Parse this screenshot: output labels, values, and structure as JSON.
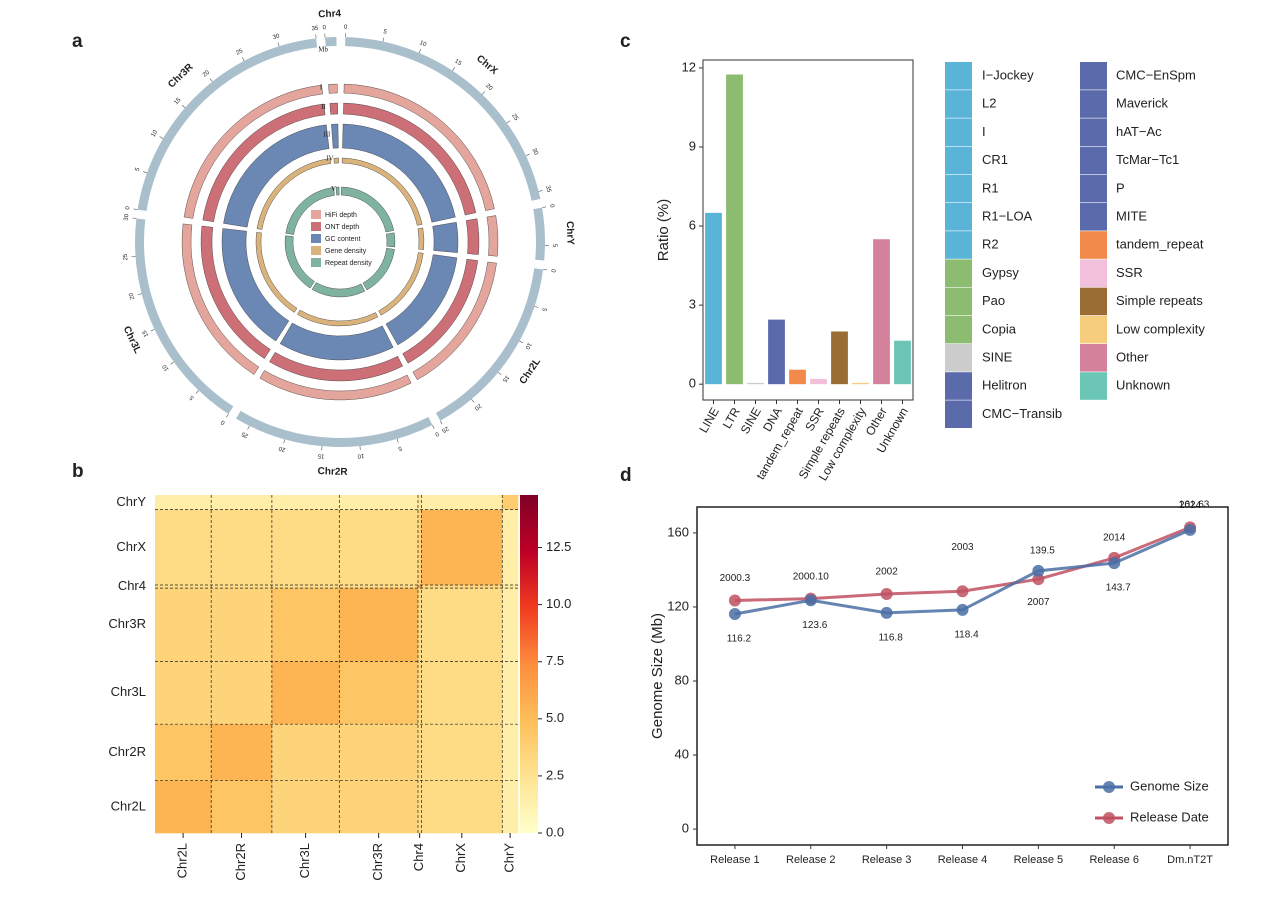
{
  "chart_data": [
    {
      "type": "circos",
      "label": "a",
      "unit_label": "Mb",
      "color": "#a9bfcc",
      "chromosomes": [
        {
          "name": "ChrX",
          "length": 36,
          "ticks": [
            0,
            5,
            10,
            15,
            20,
            25,
            30,
            35
          ]
        },
        {
          "name": "ChrY",
          "length": 7,
          "ticks": [
            0,
            5
          ]
        },
        {
          "name": "Chr2L",
          "length": 25,
          "ticks": [
            0,
            5,
            10,
            15,
            20,
            25
          ]
        },
        {
          "name": "Chr2R",
          "length": 27,
          "ticks": [
            0,
            5,
            10,
            15,
            20,
            25
          ]
        },
        {
          "name": "Chr3L",
          "length": 30,
          "ticks": [
            0,
            5,
            10,
            15,
            20,
            25,
            30
          ]
        },
        {
          "name": "Chr3R",
          "length": 35,
          "ticks": [
            0,
            5,
            10,
            15,
            20,
            25,
            30,
            35
          ]
        },
        {
          "name": "Chr4",
          "length": 1.5,
          "ticks": [
            0
          ]
        }
      ],
      "tracks": [
        {
          "label": "I",
          "name": "HiFi depth",
          "color": "#e3a59c"
        },
        {
          "label": "II",
          "name": "ONT depth",
          "color": "#cd6f76"
        },
        {
          "label": "III",
          "name": "GC content",
          "color": "#6b87b3"
        },
        {
          "label": "IV",
          "name": "Gene density",
          "color": "#d9b27c"
        },
        {
          "label": "V",
          "name": "Repeat density",
          "color": "#7fb39f"
        }
      ]
    },
    {
      "type": "heatmap",
      "label": "b",
      "rows": [
        "ChrY",
        "ChrX",
        "Chr4",
        "Chr3R",
        "Chr3L",
        "Chr2R",
        "Chr2L"
      ],
      "columns": [
        "Chr2L",
        "Chr2R",
        "Chr3L",
        "Chr3R",
        "Chr4",
        "ChrX",
        "ChrY"
      ],
      "values": [
        [
          1.5,
          1.5,
          1.5,
          1.5,
          2,
          1.5,
          4
        ],
        [
          3,
          3,
          3,
          3,
          3.5,
          5.5,
          1.5
        ],
        [
          3,
          3,
          3,
          3,
          6,
          3.5,
          2
        ],
        [
          3.5,
          3.5,
          4.5,
          5.5,
          3,
          3,
          1.5
        ],
        [
          3.5,
          3.5,
          5.5,
          4.5,
          3,
          3,
          1.5
        ],
        [
          4.5,
          5.5,
          3.5,
          3.5,
          3,
          3,
          1.5
        ],
        [
          5.5,
          4.5,
          3.5,
          3.5,
          3,
          3,
          1.5
        ]
      ],
      "clim": [
        0,
        14.8
      ],
      "cticks": [
        {
          "value": 0,
          "label": "0.0"
        },
        2.5,
        {
          "value": 5,
          "label": "5.0"
        },
        7.5,
        {
          "value": 10,
          "label": "10.0"
        },
        12.5
      ],
      "colors": [
        "#ffffcc",
        "#fee391",
        "#fdbf5a",
        "#fd8d3c",
        "#f03b20",
        "#bd0026",
        "#800026"
      ]
    },
    {
      "type": "bar",
      "label": "c",
      "categories": [
        "LINE",
        "LTR",
        "SINE",
        "DNA",
        "tandem_repeat",
        "SSR",
        "Simple repeats",
        "Low complexity",
        "Other",
        "Unknown"
      ],
      "values": [
        6.5,
        11.75,
        0.05,
        2.45,
        0.55,
        0.2,
        2.0,
        0.05,
        5.5,
        1.65
      ],
      "colors": [
        "#5ab4d8",
        "#8cbc6f",
        "#cccccc",
        "#5b6aaa",
        "#f28a4b",
        "#f2c0da",
        "#9a6d34",
        "#f5cd7c",
        "#d4819b",
        "#6cc6b6"
      ],
      "ylabel": "Ratio (%)",
      "ylim": [
        -0.6,
        12.3
      ],
      "yticks": [
        0,
        3,
        6,
        9,
        12
      ],
      "legend": [
        {
          "name": "I−Jockey",
          "color": "#5ab4d8"
        },
        {
          "name": "L2",
          "color": "#5ab4d8"
        },
        {
          "name": "I",
          "color": "#5ab4d8"
        },
        {
          "name": "CR1",
          "color": "#5ab4d8"
        },
        {
          "name": "R1",
          "color": "#5ab4d8"
        },
        {
          "name": "R1−LOA",
          "color": "#5ab4d8"
        },
        {
          "name": "R2",
          "color": "#5ab4d8"
        },
        {
          "name": "Gypsy",
          "color": "#8cbc6f"
        },
        {
          "name": "Pao",
          "color": "#8cbc6f"
        },
        {
          "name": "Copia",
          "color": "#8cbc6f"
        },
        {
          "name": "SINE",
          "color": "#cccccc"
        },
        {
          "name": "Helitron",
          "color": "#5b6aaa"
        },
        {
          "name": "CMC−Transib",
          "color": "#5b6aaa"
        },
        {
          "name": "CMC−EnSpm",
          "color": "#5b6aaa"
        },
        {
          "name": "Maverick",
          "color": "#5b6aaa"
        },
        {
          "name": "hAT−Ac",
          "color": "#5b6aaa"
        },
        {
          "name": "TcMar−Tc1",
          "color": "#5b6aaa"
        },
        {
          "name": "P",
          "color": "#5b6aaa"
        },
        {
          "name": "MITE",
          "color": "#5b6aaa"
        },
        {
          "name": "tandem_repeat",
          "color": "#f28a4b"
        },
        {
          "name": "SSR",
          "color": "#f2c0da"
        },
        {
          "name": "Simple repeats",
          "color": "#9a6d34"
        },
        {
          "name": "Low complexity",
          "color": "#f5cd7c"
        },
        {
          "name": "Other",
          "color": "#d4819b"
        },
        {
          "name": "Unknown",
          "color": "#6cc6b6"
        }
      ]
    },
    {
      "type": "line",
      "label": "d",
      "categories": [
        "Release 1",
        "Release 2",
        "Release 3",
        "Release 4",
        "Release 5",
        "Release 6",
        "Dm.nT2T"
      ],
      "ylabel": "Genome Size (Mb)",
      "ylim": [
        -8.6,
        174
      ],
      "yticks": [
        0,
        40,
        80,
        120,
        160
      ],
      "legend": "bottom-right",
      "series": [
        {
          "name": "Genome Size",
          "color": "#4a6fa5",
          "values": [
            116.2,
            123.6,
            116.8,
            118.4,
            139.5,
            143.7,
            161.63
          ]
        },
        {
          "name": "Release Date",
          "color": "#c05062",
          "values": [
            123.5,
            124.5,
            127,
            128.5,
            135,
            146.5,
            163
          ],
          "point_labels": [
            "2000.3",
            "2000.10",
            "2002",
            "2003",
            "2007",
            "2014",
            "2024"
          ]
        }
      ]
    }
  ]
}
